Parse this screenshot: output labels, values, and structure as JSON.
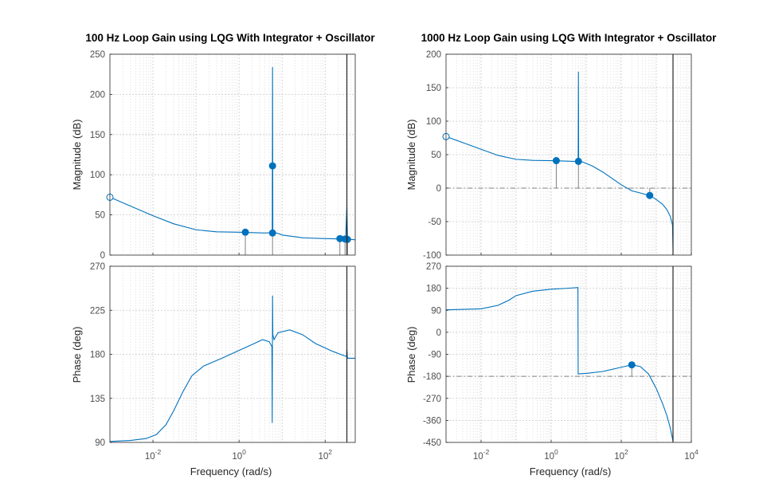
{
  "chart_data": [
    {
      "type": "line",
      "title": "100 Hz Loop Gain using LQG With Integrator + Oscillator",
      "xlabel": "Frequency  (rad/s)",
      "x_scale": "log",
      "xlim": [
        0.001,
        500
      ],
      "x_ticks": [
        {
          "v": 0.01,
          "mant": "10",
          "exp": "-2"
        },
        {
          "v": 1,
          "mant": "10",
          "exp": "0"
        },
        {
          "v": 100,
          "mant": "10",
          "exp": "2"
        }
      ],
      "grid": true,
      "stability_line_x": 320,
      "magnitude": {
        "ylabel": "Magnitude (dB)",
        "ylim": [
          0,
          250
        ],
        "y_ticks": [
          "0",
          "50",
          "100",
          "150",
          "200",
          "250"
        ],
        "color": "#0072bd",
        "points": [
          [
            0.001,
            72
          ],
          [
            0.003,
            61
          ],
          [
            0.01,
            49
          ],
          [
            0.03,
            39
          ],
          [
            0.1,
            31.5
          ],
          [
            0.3,
            29
          ],
          [
            1,
            28.5
          ],
          [
            2,
            28
          ],
          [
            4,
            27.5
          ],
          [
            5.9,
            28
          ],
          [
            6,
            234
          ],
          [
            6.1,
            28
          ],
          [
            8,
            27
          ],
          [
            10,
            25
          ],
          [
            30,
            21.5
          ],
          [
            100,
            20.5
          ],
          [
            250,
            20
          ],
          [
            300,
            21
          ],
          [
            320,
            60
          ],
          [
            330,
            20
          ],
          [
            400,
            19.5
          ],
          [
            500,
            19
          ]
        ],
        "markers": [
          {
            "x": 0.001,
            "y": 72,
            "filled": false
          },
          {
            "x": 1.4,
            "y": 28.5,
            "filled": true
          },
          {
            "x": 6,
            "y": 111,
            "filled": true
          },
          {
            "x": 6,
            "y": 27.5,
            "filled": true
          },
          {
            "x": 220,
            "y": 20.5,
            "filled": true
          },
          {
            "x": 290,
            "y": 20,
            "filled": true
          },
          {
            "x": 330,
            "y": 19.5,
            "filled": true
          }
        ],
        "stems": [
          [
            1.4,
            0,
            28.5
          ],
          [
            6,
            0,
            27.5
          ],
          [
            220,
            0,
            20.5
          ],
          [
            290,
            0,
            20
          ],
          [
            330,
            0,
            19.5
          ]
        ]
      },
      "phase": {
        "ylabel": "Phase (deg)",
        "ylim": [
          90,
          270
        ],
        "y_ticks": [
          "90",
          "135",
          "180",
          "225",
          "270"
        ],
        "color": "#0072bd",
        "points": [
          [
            0.001,
            91
          ],
          [
            0.003,
            92
          ],
          [
            0.007,
            94
          ],
          [
            0.012,
            98
          ],
          [
            0.02,
            108
          ],
          [
            0.03,
            122
          ],
          [
            0.05,
            142
          ],
          [
            0.08,
            158
          ],
          [
            0.15,
            168
          ],
          [
            0.4,
            176
          ],
          [
            1,
            184
          ],
          [
            2,
            190
          ],
          [
            3.5,
            195
          ],
          [
            5,
            193
          ],
          [
            5.8,
            188
          ],
          [
            5.9,
            110
          ],
          [
            6.0,
            240
          ],
          [
            6.1,
            200
          ],
          [
            6.5,
            195
          ],
          [
            8,
            202
          ],
          [
            15,
            205
          ],
          [
            30,
            200
          ],
          [
            60,
            191
          ],
          [
            150,
            183
          ],
          [
            300,
            178
          ],
          [
            315,
            178
          ],
          [
            320,
            185
          ],
          [
            330,
            176
          ],
          [
            500,
            176
          ]
        ]
      }
    },
    {
      "type": "line",
      "title": "1000 Hz Loop Gain using LQG With Integrator + Oscillator",
      "xlabel": "Frequency  (rad/s)",
      "x_scale": "log",
      "xlim": [
        0.001,
        10000
      ],
      "x_ticks": [
        {
          "v": 0.01,
          "mant": "10",
          "exp": "-2"
        },
        {
          "v": 1,
          "mant": "10",
          "exp": "0"
        },
        {
          "v": 100,
          "mant": "10",
          "exp": "2"
        },
        {
          "v": 10000,
          "mant": "10",
          "exp": "4"
        }
      ],
      "grid": true,
      "stability_line_x": 3000,
      "magnitude": {
        "ylabel": "Magnitude (dB)",
        "ylim": [
          -100,
          200
        ],
        "y_ticks": [
          "-100",
          "-50",
          "0",
          "50",
          "100",
          "150",
          "200"
        ],
        "color": "#0072bd",
        "reference_y": 0,
        "points": [
          [
            0.001,
            77
          ],
          [
            0.003,
            68
          ],
          [
            0.01,
            58
          ],
          [
            0.03,
            49
          ],
          [
            0.1,
            43
          ],
          [
            0.3,
            41.5
          ],
          [
            1,
            41
          ],
          [
            2,
            40.5
          ],
          [
            4,
            40
          ],
          [
            5.9,
            40
          ],
          [
            6,
            174
          ],
          [
            6.1,
            40
          ],
          [
            8,
            39
          ],
          [
            15,
            33
          ],
          [
            30,
            24
          ],
          [
            60,
            13
          ],
          [
            100,
            5
          ],
          [
            200,
            -4
          ],
          [
            400,
            -8
          ],
          [
            700,
            -12
          ],
          [
            1000,
            -17
          ],
          [
            1500,
            -24
          ],
          [
            2000,
            -32
          ],
          [
            2500,
            -42
          ],
          [
            2900,
            -55
          ],
          [
            3000,
            -90
          ]
        ],
        "markers": [
          {
            "x": 0.001,
            "y": 77,
            "filled": false
          },
          {
            "x": 1.4,
            "y": 41,
            "filled": true
          },
          {
            "x": 6,
            "y": 40,
            "filled": true
          },
          {
            "x": 650,
            "y": -11,
            "filled": true
          }
        ],
        "stems": [
          [
            1.4,
            0,
            41
          ],
          [
            6,
            0,
            40
          ],
          [
            650,
            0,
            -11
          ]
        ]
      },
      "phase": {
        "ylabel": "Phase (deg)",
        "ylim": [
          -450,
          270
        ],
        "y_ticks": [
          "-450",
          "-360",
          "-270",
          "-180",
          "-90",
          "0",
          "90",
          "180",
          "270"
        ],
        "color": "#0072bd",
        "reference_y": -180,
        "points": [
          [
            0.001,
            92
          ],
          [
            0.01,
            96
          ],
          [
            0.03,
            110
          ],
          [
            0.06,
            130
          ],
          [
            0.1,
            150
          ],
          [
            0.3,
            168
          ],
          [
            1,
            176
          ],
          [
            3,
            180
          ],
          [
            5.8,
            183
          ],
          [
            5.9,
            -170
          ],
          [
            10,
            -168
          ],
          [
            30,
            -160
          ],
          [
            100,
            -143
          ],
          [
            200,
            -133
          ],
          [
            350,
            -140
          ],
          [
            600,
            -170
          ],
          [
            1000,
            -230
          ],
          [
            1500,
            -290
          ],
          [
            2000,
            -340
          ],
          [
            2500,
            -390
          ],
          [
            3000,
            -445
          ]
        ],
        "markers": [
          {
            "x": 200,
            "y": -133,
            "filled": true
          }
        ],
        "stems": [
          [
            200,
            -180,
            -133
          ]
        ]
      }
    }
  ]
}
